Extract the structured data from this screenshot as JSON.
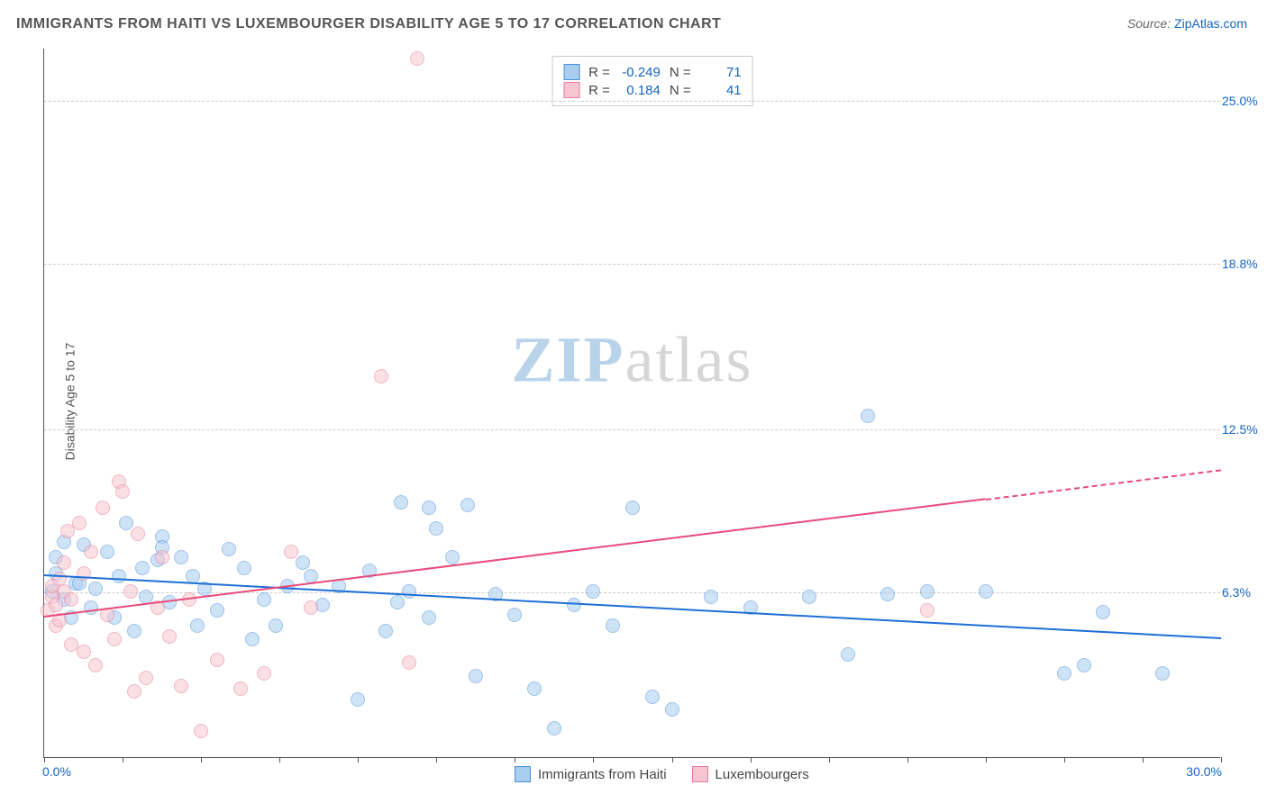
{
  "title": "IMMIGRANTS FROM HAITI VS LUXEMBOURGER DISABILITY AGE 5 TO 17 CORRELATION CHART",
  "source": {
    "label": "Source: ",
    "site": "ZipAtlas.com"
  },
  "ylabel": "Disability Age 5 to 17",
  "watermark": {
    "zip": "ZIP",
    "atlas": "atlas",
    "zip_color": "#b9d3ea",
    "atlas_color": "#d6d6d6"
  },
  "chart": {
    "type": "scatter",
    "xlim": [
      0.0,
      30.0
    ],
    "ylim": [
      0.0,
      27.0
    ],
    "x_axis": {
      "min_label": "0.0%",
      "max_label": "30.0%",
      "tick_positions": [
        0,
        2,
        4,
        6,
        8,
        10,
        12,
        14,
        16,
        18,
        20,
        22,
        24,
        26,
        28,
        30
      ]
    },
    "y_ticks": [
      {
        "value": 6.3,
        "label": "6.3%"
      },
      {
        "value": 12.5,
        "label": "12.5%"
      },
      {
        "value": 18.8,
        "label": "18.8%"
      },
      {
        "value": 25.0,
        "label": "25.0%"
      }
    ],
    "grid_color": "#cccccc",
    "background_color": "#ffffff",
    "marker_radius": 8,
    "marker_opacity": 0.55,
    "series": [
      {
        "name": "Immigrants from Haiti",
        "color_fill": "#a9cdef",
        "color_stroke": "#4a90d9",
        "trend_color": "#1e6fd6",
        "R": "-0.249",
        "N": "71",
        "trend": {
          "x1": 0.0,
          "y1": 7.0,
          "x2": 30.0,
          "y2": 4.6,
          "extrapolate_from_x": null
        },
        "points": [
          [
            0.2,
            6.3
          ],
          [
            0.3,
            7.0
          ],
          [
            0.3,
            7.6
          ],
          [
            0.5,
            6.0
          ],
          [
            0.5,
            8.2
          ],
          [
            0.7,
            5.3
          ],
          [
            0.8,
            6.6
          ],
          [
            0.9,
            6.6
          ],
          [
            1.0,
            8.1
          ],
          [
            1.2,
            5.7
          ],
          [
            1.3,
            6.4
          ],
          [
            1.6,
            7.8
          ],
          [
            1.8,
            5.3
          ],
          [
            2.1,
            8.9
          ],
          [
            2.3,
            4.8
          ],
          [
            2.5,
            7.2
          ],
          [
            2.6,
            6.1
          ],
          [
            2.9,
            7.5
          ],
          [
            3.0,
            8.4
          ],
          [
            3.0,
            8.0
          ],
          [
            3.2,
            5.9
          ],
          [
            3.5,
            7.6
          ],
          [
            3.8,
            6.9
          ],
          [
            4.1,
            6.4
          ],
          [
            4.4,
            5.6
          ],
          [
            4.7,
            7.9
          ],
          [
            5.1,
            7.2
          ],
          [
            5.6,
            6.0
          ],
          [
            5.9,
            5.0
          ],
          [
            6.2,
            6.5
          ],
          [
            6.6,
            7.4
          ],
          [
            7.1,
            5.8
          ],
          [
            7.5,
            6.5
          ],
          [
            8.0,
            2.2
          ],
          [
            8.3,
            7.1
          ],
          [
            8.7,
            4.8
          ],
          [
            9.0,
            5.9
          ],
          [
            9.1,
            9.7
          ],
          [
            9.3,
            6.3
          ],
          [
            9.8,
            5.3
          ],
          [
            9.8,
            9.5
          ],
          [
            10.0,
            8.7
          ],
          [
            10.4,
            7.6
          ],
          [
            10.8,
            9.6
          ],
          [
            11.0,
            3.1
          ],
          [
            11.5,
            6.2
          ],
          [
            12.0,
            5.4
          ],
          [
            12.5,
            2.6
          ],
          [
            13.0,
            1.1
          ],
          [
            13.5,
            5.8
          ],
          [
            14.0,
            6.3
          ],
          [
            14.5,
            5.0
          ],
          [
            15.0,
            9.5
          ],
          [
            15.5,
            2.3
          ],
          [
            16.0,
            1.8
          ],
          [
            17.0,
            6.1
          ],
          [
            18.0,
            5.7
          ],
          [
            19.5,
            6.1
          ],
          [
            20.5,
            3.9
          ],
          [
            21.0,
            13.0
          ],
          [
            21.5,
            6.2
          ],
          [
            22.5,
            6.3
          ],
          [
            26.0,
            3.2
          ],
          [
            26.5,
            3.5
          ],
          [
            27.0,
            5.5
          ],
          [
            28.5,
            3.2
          ],
          [
            24.0,
            6.3
          ],
          [
            3.9,
            5.0
          ],
          [
            5.3,
            4.5
          ],
          [
            6.8,
            6.9
          ],
          [
            1.9,
            6.9
          ]
        ]
      },
      {
        "name": "Luxembourgers",
        "color_fill": "#f6c5d1",
        "color_stroke": "#e47a9a",
        "trend_color": "#e84a7a",
        "R": "0.184",
        "N": "41",
        "trend": {
          "x1": 0.0,
          "y1": 5.4,
          "x2": 30.0,
          "y2": 11.0,
          "extrapolate_from_x": 24.0
        },
        "points": [
          [
            0.1,
            5.6
          ],
          [
            0.2,
            6.1
          ],
          [
            0.2,
            6.5
          ],
          [
            0.3,
            5.0
          ],
          [
            0.3,
            5.8
          ],
          [
            0.4,
            6.8
          ],
          [
            0.4,
            5.2
          ],
          [
            0.5,
            6.3
          ],
          [
            0.5,
            7.4
          ],
          [
            0.6,
            8.6
          ],
          [
            0.7,
            4.3
          ],
          [
            0.7,
            6.0
          ],
          [
            0.9,
            8.9
          ],
          [
            1.0,
            4.0
          ],
          [
            1.0,
            7.0
          ],
          [
            1.2,
            7.8
          ],
          [
            1.3,
            3.5
          ],
          [
            1.5,
            9.5
          ],
          [
            1.6,
            5.4
          ],
          [
            1.9,
            10.5
          ],
          [
            2.0,
            10.1
          ],
          [
            1.8,
            4.5
          ],
          [
            2.2,
            6.3
          ],
          [
            2.3,
            2.5
          ],
          [
            2.4,
            8.5
          ],
          [
            2.6,
            3.0
          ],
          [
            2.9,
            5.7
          ],
          [
            3.0,
            7.6
          ],
          [
            3.2,
            4.6
          ],
          [
            3.5,
            2.7
          ],
          [
            3.7,
            6.0
          ],
          [
            4.0,
            1.0
          ],
          [
            4.4,
            3.7
          ],
          [
            5.0,
            2.6
          ],
          [
            5.6,
            3.2
          ],
          [
            6.3,
            7.8
          ],
          [
            6.8,
            5.7
          ],
          [
            8.6,
            14.5
          ],
          [
            9.3,
            3.6
          ],
          [
            9.5,
            26.6
          ],
          [
            22.5,
            5.6
          ]
        ]
      }
    ]
  },
  "legend_top_labels": {
    "R": "R",
    "N": "N",
    "eq": "="
  },
  "legend_bottom": [
    {
      "series_index": 0
    },
    {
      "series_index": 1
    }
  ]
}
